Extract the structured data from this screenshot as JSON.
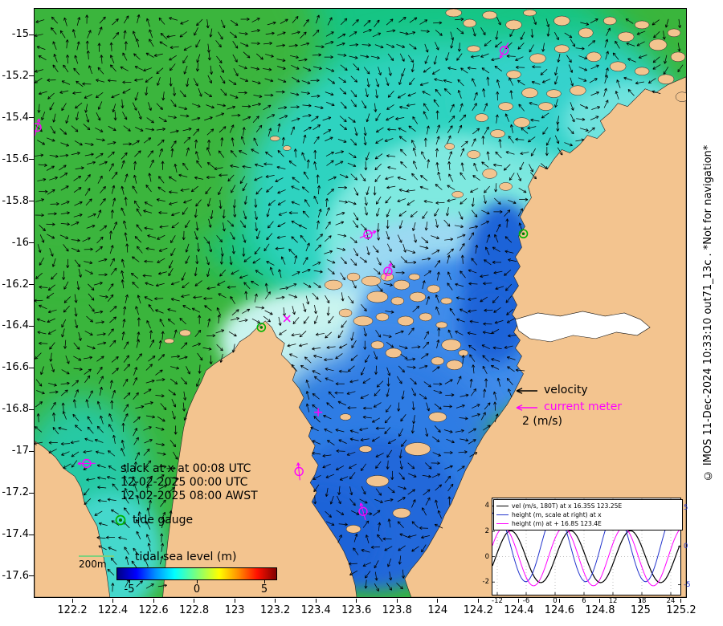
{
  "figure": {
    "right_caption": "© IMOS 11-Dec-2024 10:33:10 out71_13c . *Not for navigation*"
  },
  "colors": {
    "land": "#f3c48f",
    "ocean_green": "#3ab53c",
    "deep_blue": "#1d63d8",
    "magenta": "#ff00ff",
    "tide_gauge_green": "#00b400",
    "inset_right_axis_blue": "#2233cc"
  },
  "axes": {
    "lat_ticks": [
      "-15",
      "-15.2",
      "-15.4",
      "-15.6",
      "-15.8",
      "-16",
      "-16.2",
      "-16.4",
      "-16.6",
      "-16.8",
      "-17",
      "-17.2",
      "-17.4",
      "-17.6"
    ],
    "lon_ticks": [
      "122.2",
      "122.4",
      "122.6",
      "122.8",
      "123",
      "123.2",
      "123.4",
      "123.6",
      "123.8",
      "124",
      "124.2",
      "124.4",
      "124.6",
      "124.8",
      "125",
      "125.2"
    ]
  },
  "legend": {
    "velocity_label": "velocity",
    "current_meter_label": "current meter",
    "scale_label": "2 (m/s)",
    "tide_gauge_label": "tide gauge"
  },
  "annotations": {
    "slack_lines": [
      "slack at x at 00:08 UTC",
      "12-02-2025 00:00 UTC",
      "12-02-2025 08:00 AWST"
    ],
    "scalebar_label": "200m"
  },
  "colorbar": {
    "title": "tidal sea level (m)",
    "ticks": [
      "-5",
      "0",
      "5"
    ]
  },
  "map": {
    "markers": [
      {
        "type": "current-meter-circle",
        "x": 628,
        "y": 62
      },
      {
        "type": "current-meter-circle",
        "x": 45,
        "y": 158
      },
      {
        "type": "current-meter-circle",
        "x": 458,
        "y": 292
      },
      {
        "type": "current-meter-circle",
        "x": 483,
        "y": 338
      },
      {
        "type": "current-meter-circle",
        "x": 372,
        "y": 588
      },
      {
        "type": "current-meter-circle",
        "x": 452,
        "y": 638
      },
      {
        "type": "current-meter-circle",
        "x": 107,
        "y": 578
      },
      {
        "type": "current-meter-x",
        "x": 357,
        "y": 397
      },
      {
        "type": "current-meter-plus",
        "x": 396,
        "y": 514
      },
      {
        "type": "tide-gauge",
        "x": 652,
        "y": 291
      },
      {
        "type": "tide-gauge",
        "x": 325,
        "y": 408
      }
    ]
  },
  "chart_data": {
    "type": "line",
    "title": "",
    "xlabel": "",
    "ylabel": "",
    "x_range": [
      -13,
      26
    ],
    "x_ticks": [
      -12,
      -6,
      0,
      6,
      12,
      18,
      24
    ],
    "ylim_left": [
      -3,
      4.6
    ],
    "yticks_left": [
      -2,
      0,
      2,
      4
    ],
    "ylim_right": [
      -6.3,
      6.3
    ],
    "yticks_right": [
      -5,
      0,
      5
    ],
    "grid": true,
    "legend_position": "top",
    "series": [
      {
        "name": "vel (m/s, 180T) at x 16.35S 123.25E",
        "color": "#000000",
        "axis": "left",
        "amplitude": 2.05,
        "period": 12.42,
        "phase": 0.13,
        "offset": 0
      },
      {
        "name": "height (m, scale at right) at x",
        "color": "#2233cc",
        "axis": "right",
        "amplitude": 4.6,
        "period": 12.42,
        "phase": 0.13,
        "offset": 1.5708
      },
      {
        "name": "height (m) at + 16.8S 123.4E",
        "color": "#ff00ff",
        "axis": "left",
        "amplitude": 2.3,
        "period": 12.42,
        "phase": 0.13,
        "offset": 0.75
      }
    ]
  }
}
